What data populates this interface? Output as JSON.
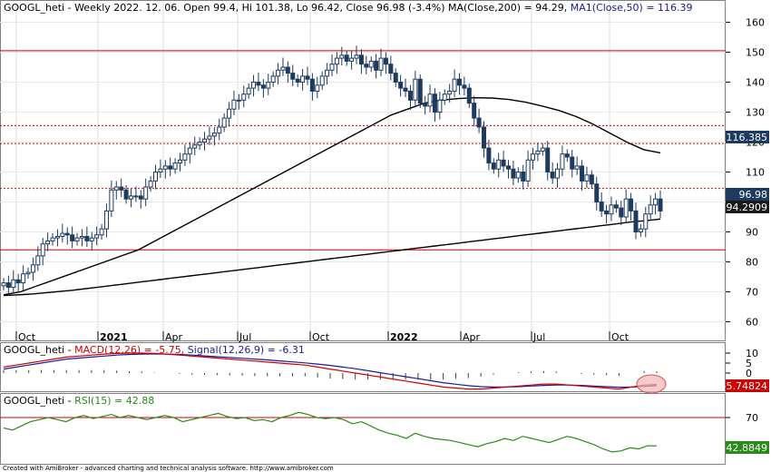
{
  "header": {
    "main_prefix": "GOOGL_heti - Weekly 2022. 12. 06. Open 99.4, Hi 101.38, Lo 96.42, Close 96.98 (-3.4%) ",
    "ma200_label": "MA(Close,200) = 94.29,",
    "ma50_label": " MA1(Close,50) = 116.39",
    "macd_prefix": "GOOGL_heti - ",
    "macd_label": "MACD(12,26) = -5.75,",
    "macd_signal_label": " Signal(12,26,9) = -6.31",
    "rsi_prefix": "GOOGL_heti - ",
    "rsi_label": "RSI(15) = 42.88"
  },
  "price_axis": {
    "ticks": [
      "160",
      "150",
      "140",
      "130",
      "120",
      "110",
      "100",
      "90",
      "80",
      "70",
      "60"
    ]
  },
  "macd_axis": {
    "ticks": [
      "10",
      "5",
      "0",
      "-5"
    ]
  },
  "rsi_axis": {
    "ticks": [
      "70"
    ]
  },
  "time_axis": {
    "labels": [
      "Oct",
      "2021",
      "Apr",
      "Jul",
      "Oct",
      "2022",
      "Apr",
      "Jul",
      "Oct"
    ]
  },
  "value_tags": {
    "ma50": "116.385",
    "close": "96.98",
    "ma200": "94.2909",
    "macd": "-5.74824",
    "rsi": "42.8849"
  },
  "footer": {
    "credit": "Created with AmiBroker - advanced charting and technical analysis software. http://www.amibroker.com"
  },
  "colors": {
    "up_candle": "#ffffff",
    "down_candle": "#1e3a5f",
    "candle_outline": "#1e3a5f",
    "ma_line": "#000000",
    "resistance_line": "#cc0000",
    "macd_line": "#cc0000",
    "signal_line": "#1a1aa0",
    "rsi_line": "#2a8a1a",
    "highlight_circle": "#e88080",
    "tag_ma": "#1e3a5f",
    "tag_macd": "#cc0000",
    "tag_rsi": "#2a8a1a"
  },
  "chart_data": [
    {
      "type": "candlestick",
      "title": "GOOGL_heti - Weekly",
      "ylim": [
        50,
        165
      ],
      "y_axis_ticks": [
        60,
        70,
        80,
        90,
        100,
        110,
        120,
        130,
        140,
        150,
        160
      ],
      "x_axis_labels": [
        "Oct",
        "2021",
        "Apr",
        "Jul",
        "Oct",
        "2022",
        "Apr",
        "Jul",
        "Oct"
      ],
      "last_bar": {
        "date": "2022. 12. 06.",
        "open": 99.4,
        "high": 101.38,
        "low": 96.42,
        "close": 96.98,
        "change_pct": -3.4
      },
      "closes": [
        73,
        71.5,
        74,
        73,
        76,
        76.5,
        79,
        82,
        86,
        87,
        88,
        88.5,
        89.5,
        89,
        87,
        88,
        88.5,
        87,
        88,
        89,
        91,
        97,
        104,
        105,
        104,
        101,
        102,
        102,
        101,
        105,
        107,
        110,
        111,
        112,
        111,
        113,
        114,
        116,
        118,
        119,
        120,
        121,
        122,
        123,
        125,
        128,
        131,
        134,
        134,
        136,
        138,
        140,
        139,
        138,
        140,
        142,
        144,
        145,
        143,
        141,
        140,
        142,
        141,
        137,
        139,
        142,
        144,
        146,
        148,
        149,
        147,
        148,
        149,
        146,
        145,
        147,
        144,
        148,
        146,
        143,
        140,
        138,
        137,
        134,
        141,
        133,
        132,
        136,
        130,
        134,
        136,
        137,
        141,
        139,
        138,
        133,
        128,
        125,
        118,
        113,
        111,
        114,
        112,
        111,
        108,
        110,
        107,
        114,
        116,
        117,
        118,
        110,
        108,
        111,
        116,
        115,
        111,
        112,
        107,
        109,
        106,
        100,
        97,
        96,
        99,
        98,
        95,
        101,
        97,
        90,
        91,
        96,
        99,
        101,
        96.98
      ],
      "series": [
        {
          "name": "MA(Close,200)",
          "last_value": 94.29,
          "values": [
            68.8,
            68.9,
            69.1,
            69.3,
            69.6,
            69.9,
            70.2,
            70.5,
            70.9,
            71.3,
            71.7,
            72.1,
            72.5,
            72.9,
            73.3,
            73.7,
            74.1,
            74.5,
            74.9,
            75.3,
            75.7,
            76.1,
            76.5,
            76.9,
            77.3,
            77.7,
            78.1,
            78.5,
            78.9,
            79.3,
            79.7,
            80.1,
            80.5,
            80.9,
            81.3,
            81.7,
            82.1,
            82.5,
            82.9,
            83.3,
            83.7,
            84.1,
            84.5,
            84.9,
            85.3,
            85.7,
            86.1,
            86.5,
            86.9,
            87.3,
            87.7,
            88.1,
            88.5,
            88.9,
            89.3,
            89.7,
            90.1,
            90.5,
            90.9,
            91.3,
            91.7,
            92.1,
            92.5,
            92.9,
            93.3,
            93.6,
            93.9,
            94.29
          ]
        },
        {
          "name": "MA1(Close,50)",
          "last_value": 116.39,
          "values": [
            69,
            70,
            72,
            74,
            76,
            78,
            80,
            82,
            84,
            87,
            90,
            93,
            96,
            99,
            102,
            105,
            108,
            111,
            114,
            117,
            120,
            123,
            126,
            129,
            131,
            133,
            134,
            134.5,
            134.8,
            134.7,
            134.2,
            133.3,
            132,
            130.5,
            128.5,
            126,
            123,
            120,
            117.5,
            116.39
          ]
        }
      ],
      "reference_levels": [
        150.5,
        125.5,
        119.5,
        104.5,
        84
      ]
    },
    {
      "type": "line",
      "title": "MACD",
      "y_axis_ticks": [
        -5,
        0,
        5,
        10
      ],
      "series": [
        {
          "name": "MACD(12,26)",
          "last_value": -5.75,
          "values": [
            3,
            4,
            5,
            6,
            7,
            8,
            8.5,
            9,
            9.5,
            9.8,
            10,
            10,
            9.8,
            9.5,
            9,
            8.5,
            8,
            7.5,
            7,
            6.5,
            6,
            5.5,
            5,
            4.5,
            4,
            3,
            2,
            1,
            0,
            -1,
            -2,
            -3,
            -4,
            -5,
            -6,
            -7,
            -7.5,
            -8,
            -8,
            -7.5,
            -7,
            -6.5,
            -6,
            -5.5,
            -5.5,
            -6,
            -6.5,
            -7,
            -7.5,
            -8,
            -7,
            -6,
            -5.75
          ]
        },
        {
          "name": "Signal(12,26,9)",
          "last_value": -6.31,
          "values": [
            2,
            3,
            4,
            5,
            6,
            7,
            7.5,
            8,
            8.5,
            9,
            9.3,
            9.5,
            9.6,
            9.5,
            9.3,
            9,
            8.6,
            8.2,
            7.8,
            7.4,
            7,
            6.6,
            6.1,
            5.6,
            5.1,
            4.5,
            3.8,
            3,
            2.2,
            1.2,
            0.2,
            -0.8,
            -1.8,
            -2.8,
            -3.8,
            -4.8,
            -5.6,
            -6.3,
            -6.8,
            -7,
            -7,
            -6.8,
            -6.5,
            -6.2,
            -6,
            -6,
            -6.2,
            -6.5,
            -6.8,
            -7.1,
            -7,
            -6.7,
            -6.31
          ]
        }
      ]
    },
    {
      "type": "line",
      "title": "RSI",
      "y_axis_ticks": [
        70
      ],
      "series": [
        {
          "name": "RSI(15)",
          "last_value": 42.88,
          "values": [
            60,
            58,
            62,
            66,
            68,
            70,
            68,
            66,
            70,
            72,
            69,
            71,
            73,
            70,
            72,
            70,
            68,
            70,
            72,
            70,
            66,
            68,
            70,
            72,
            74,
            71,
            69,
            70,
            67,
            68,
            66,
            70,
            72,
            75,
            73,
            70,
            69,
            70,
            68,
            64,
            66,
            62,
            58,
            55,
            53,
            50,
            55,
            52,
            50,
            49,
            48,
            46,
            44,
            42,
            45,
            47,
            50,
            48,
            52,
            50,
            48,
            46,
            49,
            52,
            50,
            47,
            44,
            40,
            37,
            38,
            41,
            40,
            43,
            42.88
          ]
        }
      ]
    }
  ]
}
